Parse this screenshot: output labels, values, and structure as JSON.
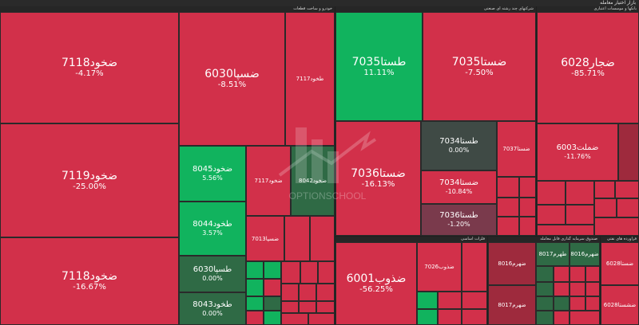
{
  "header": {
    "title": "بازار اختیار معامله"
  },
  "sectors": {
    "s1": "خودرو و ساخت قطعات",
    "s2": "شرکتهای چند رشته ای صنعتی",
    "s3": "بانکها و موسسات اعتباری",
    "s4": "فلزات اساسی",
    "s5": "صندوق سرمایه گذاری قابل معامله",
    "s6": "فرآورده های نفتی",
    "s7": "فراورده های نفتی"
  },
  "tiles": {
    "t1": {
      "symbol": "ضخود7118",
      "change": "-4.17%"
    },
    "t2": {
      "symbol": "ضخود7119",
      "change": "-25.00%"
    },
    "t3": {
      "symbol": "ضخود7118",
      "change": "-16.67%"
    },
    "t4": {
      "symbol": "ضسپا6030",
      "change": "-8.51%"
    },
    "t5": {
      "symbol": "طخود7117",
      "change": ""
    },
    "t6": {
      "symbol": "ضخود8045",
      "change": "5.56%"
    },
    "t7": {
      "symbol": "طخود8044",
      "change": "3.57%"
    },
    "t8": {
      "symbol": "طسپا6030",
      "change": "0.00%"
    },
    "t9": {
      "symbol": "طخود8043",
      "change": "0.00%"
    },
    "t10": {
      "symbol": "ضخود7117",
      "change": ""
    },
    "t11": {
      "symbol": "ضخود8042",
      "change": ""
    },
    "t12": {
      "symbol": "ضسپا7013",
      "change": ""
    },
    "t13": {
      "symbol": "طستا7035",
      "change": "11.11%"
    },
    "t14": {
      "symbol": "ضستا7035",
      "change": "-7.50%"
    },
    "t15": {
      "symbol": "ضستا7036",
      "change": "-16.13%"
    },
    "t16": {
      "symbol": "طستا7034",
      "change": "0.00%"
    },
    "t17": {
      "symbol": "ضستا7034",
      "change": "-10.84%"
    },
    "t18": {
      "symbol": "طستا7036",
      "change": "-1.20%"
    },
    "t19": {
      "symbol": "ضستا7037",
      "change": ""
    },
    "t20": {
      "symbol": "ضجار6028",
      "change": "-85.71%"
    },
    "t21": {
      "symbol": "ضملت6003",
      "change": "-11.76%"
    },
    "t22": {
      "symbol": "ضذوب6001",
      "change": "-56.25%"
    },
    "t23": {
      "symbol": "ضذوب7026",
      "change": ""
    },
    "t24": {
      "symbol": "ضهرم8016",
      "change": ""
    },
    "t25": {
      "symbol": "ضهرم8017",
      "change": ""
    },
    "t26": {
      "symbol": "طهرم8017",
      "change": ""
    },
    "t27": {
      "symbol": "ضهرم8016",
      "change": ""
    },
    "t28": {
      "symbol": "ضستا6028",
      "change": ""
    },
    "t29": {
      "symbol": "ضشستا6028",
      "change": ""
    }
  },
  "watermark": {
    "text": "OPTIONSCHOOL"
  },
  "colors": {
    "red": "#d2304a",
    "dark_red": "#9e2a3d",
    "green": "#11b35e",
    "dark_green": "#2f6a45",
    "grey": "#3f4a45",
    "background": "#1f1f1f"
  }
}
